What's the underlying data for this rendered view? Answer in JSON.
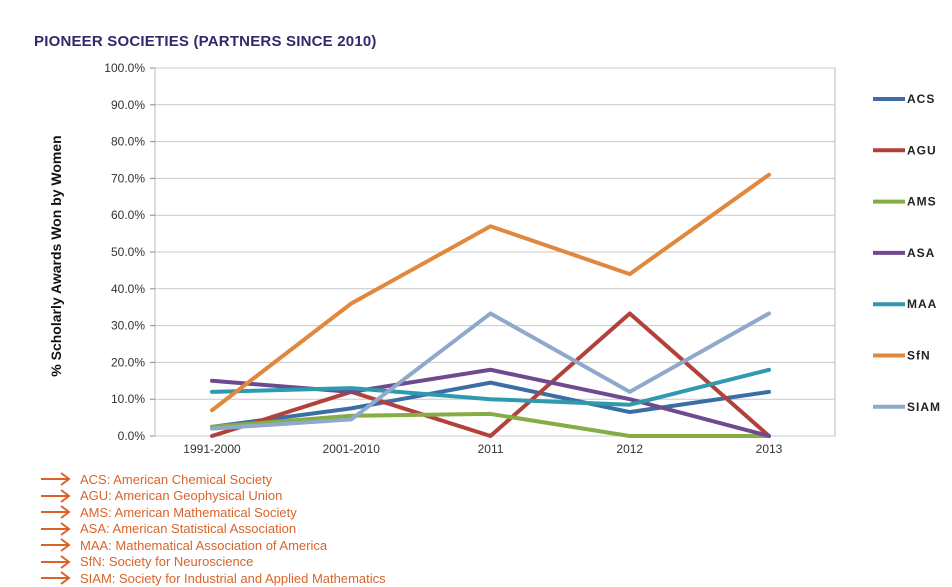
{
  "chart_data": {
    "type": "line",
    "title": "PIONEER SOCIETIES (PARTNERS SINCE 2010)",
    "ylabel": "% Scholarly Awards Won by Women",
    "xlabel": "",
    "categories": [
      "1991-2000",
      "2001-2010",
      "2011",
      "2012",
      "2013"
    ],
    "ylim": [
      0,
      100
    ],
    "yticks": [
      "0.0%",
      "10.0%",
      "20.0%",
      "30.0%",
      "40.0%",
      "50.0%",
      "60.0%",
      "70.0%",
      "80.0%",
      "90.0%",
      "100.0%"
    ],
    "grid": true,
    "legend_position": "right",
    "series": [
      {
        "name": "ACS",
        "color": "#3c6ea6",
        "values": [
          2.5,
          7.5,
          14.5,
          6.5,
          12.0
        ]
      },
      {
        "name": "AGU",
        "color": "#b2413c",
        "values": [
          0.0,
          12.0,
          0.0,
          33.3,
          0.0
        ]
      },
      {
        "name": "AMS",
        "color": "#86ac45",
        "values": [
          2.5,
          5.5,
          6.0,
          0.0,
          0.0
        ]
      },
      {
        "name": "ASA",
        "color": "#6e4a8e",
        "values": [
          15.0,
          12.0,
          18.0,
          10.0,
          0.0
        ]
      },
      {
        "name": "MAA",
        "color": "#2f9aad",
        "values": [
          12.0,
          13.0,
          10.0,
          8.5,
          18.0
        ]
      },
      {
        "name": "SfN",
        "color": "#e0883e",
        "values": [
          7.0,
          36.0,
          57.0,
          44.0,
          71.0
        ]
      },
      {
        "name": "SIAM",
        "color": "#8fa9cc",
        "values": [
          2.0,
          4.5,
          33.3,
          12.0,
          33.3
        ]
      }
    ]
  },
  "notes": [
    "ACS: American Chemical Society",
    "AGU: American Geophysical Union",
    "AMS: American Mathematical Society",
    "ASA: American Statistical Association",
    "MAA: Mathematical Association of America",
    "SfN: Society for Neuroscience",
    "SIAM: Society for Industrial and Applied Mathematics"
  ],
  "note_color": "#d9642a"
}
